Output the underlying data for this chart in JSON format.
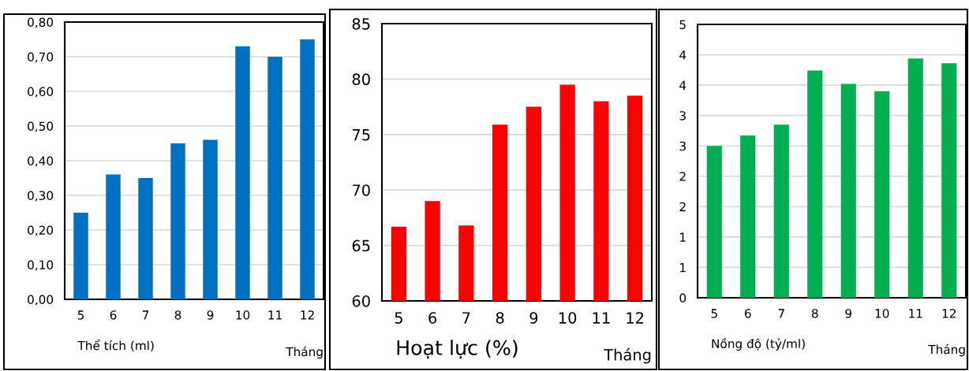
{
  "chart_data": [
    {
      "type": "bar",
      "categories": [
        "5",
        "6",
        "7",
        "8",
        "9",
        "10",
        "11",
        "12"
      ],
      "values": [
        0.25,
        0.36,
        0.35,
        0.45,
        0.46,
        0.73,
        0.7,
        0.75
      ],
      "color": "#0070c0",
      "ylim": [
        0,
        0.8
      ],
      "yticks": [
        {
          "value": 0,
          "label": "0,00"
        },
        {
          "value": 0.1,
          "label": "0,10"
        },
        {
          "value": 0.2,
          "label": "0,20"
        },
        {
          "value": 0.3,
          "label": "0,30"
        },
        {
          "value": 0.4,
          "label": "0,40"
        },
        {
          "value": 0.5,
          "label": "0,50"
        },
        {
          "value": 0.6,
          "label": "0,60"
        },
        {
          "value": 0.7,
          "label": "0,70"
        },
        {
          "value": 0.8,
          "label": "0,80"
        }
      ],
      "xlabel": "Tháng",
      "annotations": [
        "Thể tích (ml)"
      ],
      "grid": "y",
      "legend": false
    },
    {
      "type": "bar",
      "categories": [
        "5",
        "6",
        "7",
        "8",
        "9",
        "10",
        "11",
        "12"
      ],
      "values": [
        66.7,
        69.0,
        66.8,
        75.9,
        77.5,
        79.5,
        78.0,
        78.5
      ],
      "color": "#ff0000",
      "ylim": [
        60,
        85
      ],
      "yticks": [
        60,
        65,
        70,
        75,
        80,
        85
      ],
      "xlabel": "Tháng",
      "annotations": [
        "Hoạt lực (%)"
      ],
      "grid": "y",
      "legend": false
    },
    {
      "type": "bar",
      "categories": [
        "5",
        "6",
        "7",
        "8",
        "9",
        "10",
        "11",
        "12"
      ],
      "values": [
        2.5,
        2.67,
        2.85,
        3.74,
        3.52,
        3.4,
        3.94,
        3.86
      ],
      "color": "#00b050",
      "ylim": [
        0,
        4.5
      ],
      "yticks": [
        {
          "value": 0,
          "label": "0"
        },
        {
          "value": 0.5,
          "label": "1"
        },
        {
          "value": 1,
          "label": "1"
        },
        {
          "value": 1.5,
          "label": "2"
        },
        {
          "value": 2,
          "label": "2"
        },
        {
          "value": 2.5,
          "label": "3"
        },
        {
          "value": 3,
          "label": "3"
        },
        {
          "value": 3.5,
          "label": "4"
        },
        {
          "value": 4,
          "label": "4"
        },
        {
          "value": 4.5,
          "label": "5"
        }
      ],
      "xlabel": "Tháng",
      "annotations": [
        "Nồng độ (tỷ/ml)"
      ],
      "grid": "y",
      "legend": false
    }
  ]
}
